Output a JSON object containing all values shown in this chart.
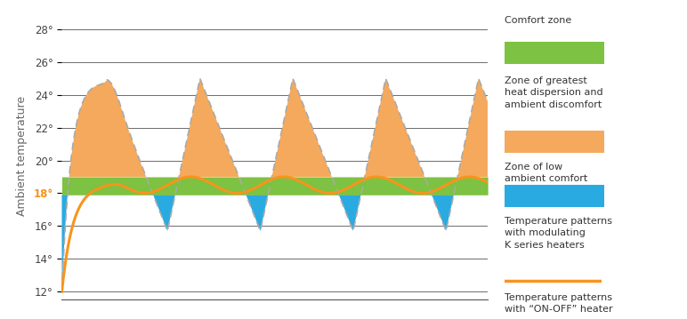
{
  "title": "",
  "ylabel": "Ambient temperature",
  "yticks": [
    12,
    14,
    16,
    18,
    20,
    22,
    24,
    26,
    28
  ],
  "ylim": [
    11.5,
    29
  ],
  "xlim": [
    0,
    10
  ],
  "comfort_zone_low": 17.9,
  "comfort_zone_high": 19.0,
  "comfort_color": "#7dc242",
  "orange_fill_color": "#f5a95c",
  "blue_fill_color": "#29abe2",
  "on_off_line_color": "#aaaaaa",
  "modulating_line_color": "#f7941d",
  "tick_label_18_color": "#f7941d",
  "background_color": "#ffffff",
  "legend_comfort_label": "Comfort zone",
  "legend_orange_label": "Zone of greatest\nheat dispersion and\nambient discomfort",
  "legend_blue_label": "Zone of low\nambient comfort",
  "legend_modulating_label": "Temperature patterns\nwith modulating\nK series heaters",
  "legend_onoff_label": "Temperature patterns\nwith “ON-OFF” heater"
}
